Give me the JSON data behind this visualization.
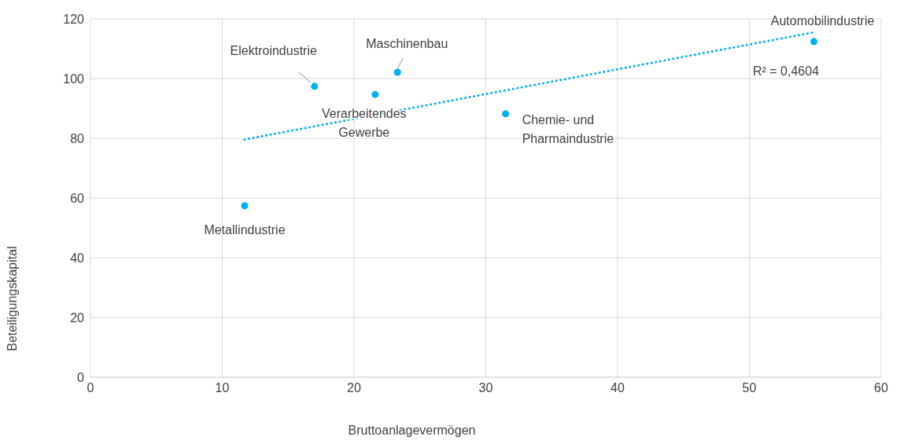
{
  "chart_data": {
    "type": "scatter",
    "xlabel": "Bruttoanlagevermögen",
    "ylabel": "Beteiligungskapital",
    "xlim": [
      0,
      60
    ],
    "xticks": [
      0,
      10,
      20,
      30,
      40,
      50,
      60
    ],
    "ylim": [
      0,
      120
    ],
    "yticks": [
      0,
      20,
      40,
      60,
      80,
      100,
      120
    ],
    "grid": true,
    "legend": false,
    "series": [
      {
        "marker": "circle",
        "color": "#00b0f0",
        "x": [
          11.7,
          17.0,
          21.6,
          23.3,
          31.5,
          54.9
        ],
        "values": [
          57.4,
          97.4,
          94.7,
          102.1,
          88.2,
          112.4
        ]
      },
      {
        "type": "line",
        "marker": "none",
        "color": "#00b0f0",
        "line_style": "dotted",
        "x": [
          11.7,
          54.9
        ],
        "values": [
          79.6,
          115.5
        ]
      }
    ],
    "annotations": [
      {
        "text": "Metallindustrie",
        "x": 11.7,
        "y": 57.4
      },
      {
        "text": "Elektroindustrie",
        "x": 17.0,
        "y": 97.4
      },
      {
        "text": "Verarbeitendes Gewerbe",
        "x": 21.6,
        "y": 94.7
      },
      {
        "text": "Maschinenbau",
        "x": 23.3,
        "y": 102.1
      },
      {
        "text": "Chemie- und Pharmaindustrie",
        "x": 31.5,
        "y": 88.2
      },
      {
        "text": "Automobilindustrie",
        "x": 54.9,
        "y": 112.4
      },
      "R² = 0,4604"
    ]
  }
}
